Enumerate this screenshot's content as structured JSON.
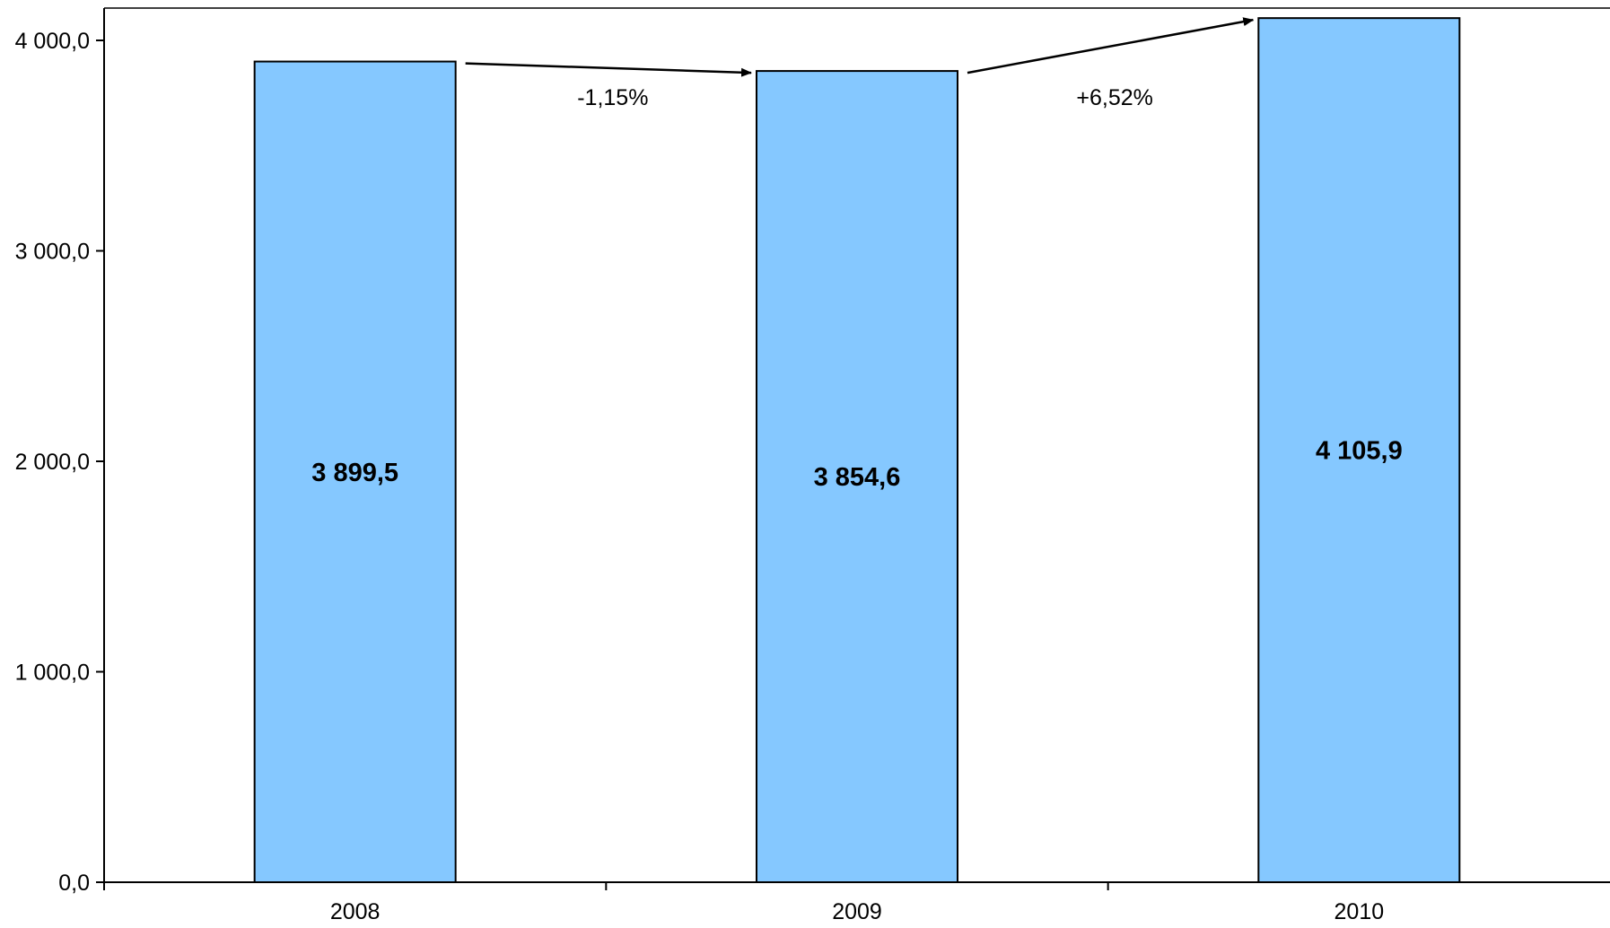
{
  "chart_data": {
    "type": "bar",
    "title": "",
    "xlabel": "",
    "ylabel": "",
    "categories": [
      "2008",
      "2009",
      "2010"
    ],
    "values": [
      3899.5,
      3854.6,
      4105.9
    ],
    "value_labels": [
      "3 899,5",
      "3 854,6",
      "4 105,9"
    ],
    "ylim": [
      0,
      4150
    ],
    "yticks": [
      0,
      1000,
      2000,
      3000,
      4000
    ],
    "ytick_labels": [
      "0,0",
      "1 000,0",
      "2 000,0",
      "3 000,0",
      "4 000,0"
    ],
    "bar_color": "#85C8FF",
    "bar_edge_color": "#000000",
    "grid": false,
    "legend": "none",
    "annotations": [
      {
        "text": "-1,15%",
        "from": "2008",
        "to": "2009"
      },
      {
        "text": "+6,52%",
        "from": "2009",
        "to": "2010"
      }
    ]
  }
}
